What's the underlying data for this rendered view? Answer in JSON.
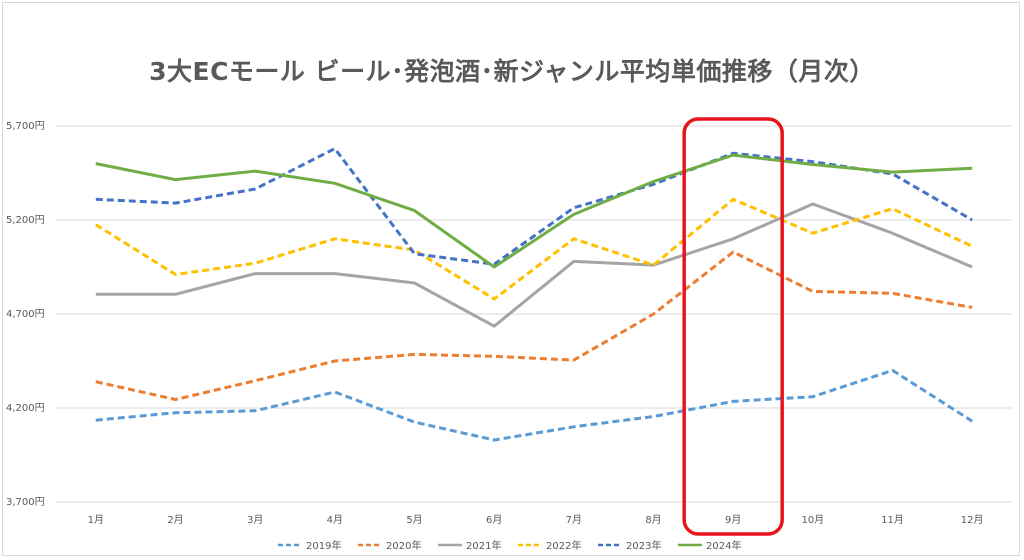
{
  "chart_data": {
    "type": "line",
    "title": "3大ECモール ビール･発泡酒･新ジャンル平均単価推移（月次）",
    "xlabel": "",
    "ylabel": "",
    "categories": [
      "1月",
      "2月",
      "3月",
      "4月",
      "5月",
      "6月",
      "7月",
      "8月",
      "9月",
      "10月",
      "11月",
      "12月"
    ],
    "ylim": [
      3700,
      5700
    ],
    "yticks": [
      3700,
      4200,
      4700,
      5200,
      5700
    ],
    "ytick_labels": [
      "3,700円",
      "4,200円",
      "4,700円",
      "5,200円",
      "5,700円"
    ],
    "grid": "horizontal",
    "legend_position": "bottom",
    "highlight_category": "9月",
    "highlight_color": "#e8141b",
    "series": [
      {
        "name": "2019年",
        "color": "#5b9bd5",
        "style": "dashed",
        "values": [
          4135,
          4175,
          4185,
          4285,
          4125,
          4030,
          4100,
          4155,
          4235,
          4260,
          4400,
          4130
        ]
      },
      {
        "name": "2020年",
        "color": "#ed7d31",
        "style": "dashed",
        "values": [
          4340,
          4245,
          4345,
          4450,
          4485,
          4475,
          4455,
          4700,
          5030,
          4820,
          4810,
          4735
        ]
      },
      {
        "name": "2021年",
        "color": "#a5a5a5",
        "style": "solid",
        "values": [
          4805,
          4805,
          4915,
          4915,
          4865,
          4635,
          4980,
          4960,
          5100,
          5285,
          5130,
          4950
        ]
      },
      {
        "name": "2022年",
        "color": "#ffc000",
        "style": "dashed",
        "values": [
          5175,
          4910,
          4970,
          5100,
          5040,
          4780,
          5100,
          4960,
          5310,
          5130,
          5260,
          5060
        ]
      },
      {
        "name": "2023年",
        "color": "#4472c4",
        "style": "dashed",
        "values": [
          5310,
          5290,
          5365,
          5580,
          5020,
          4965,
          5265,
          5390,
          5555,
          5510,
          5445,
          5200
        ]
      },
      {
        "name": "2024年",
        "color": "#70ad47",
        "style": "solid",
        "values": [
          5500,
          5415,
          5460,
          5395,
          5250,
          4950,
          5230,
          5405,
          5545,
          5495,
          5455,
          5475
        ]
      }
    ]
  }
}
